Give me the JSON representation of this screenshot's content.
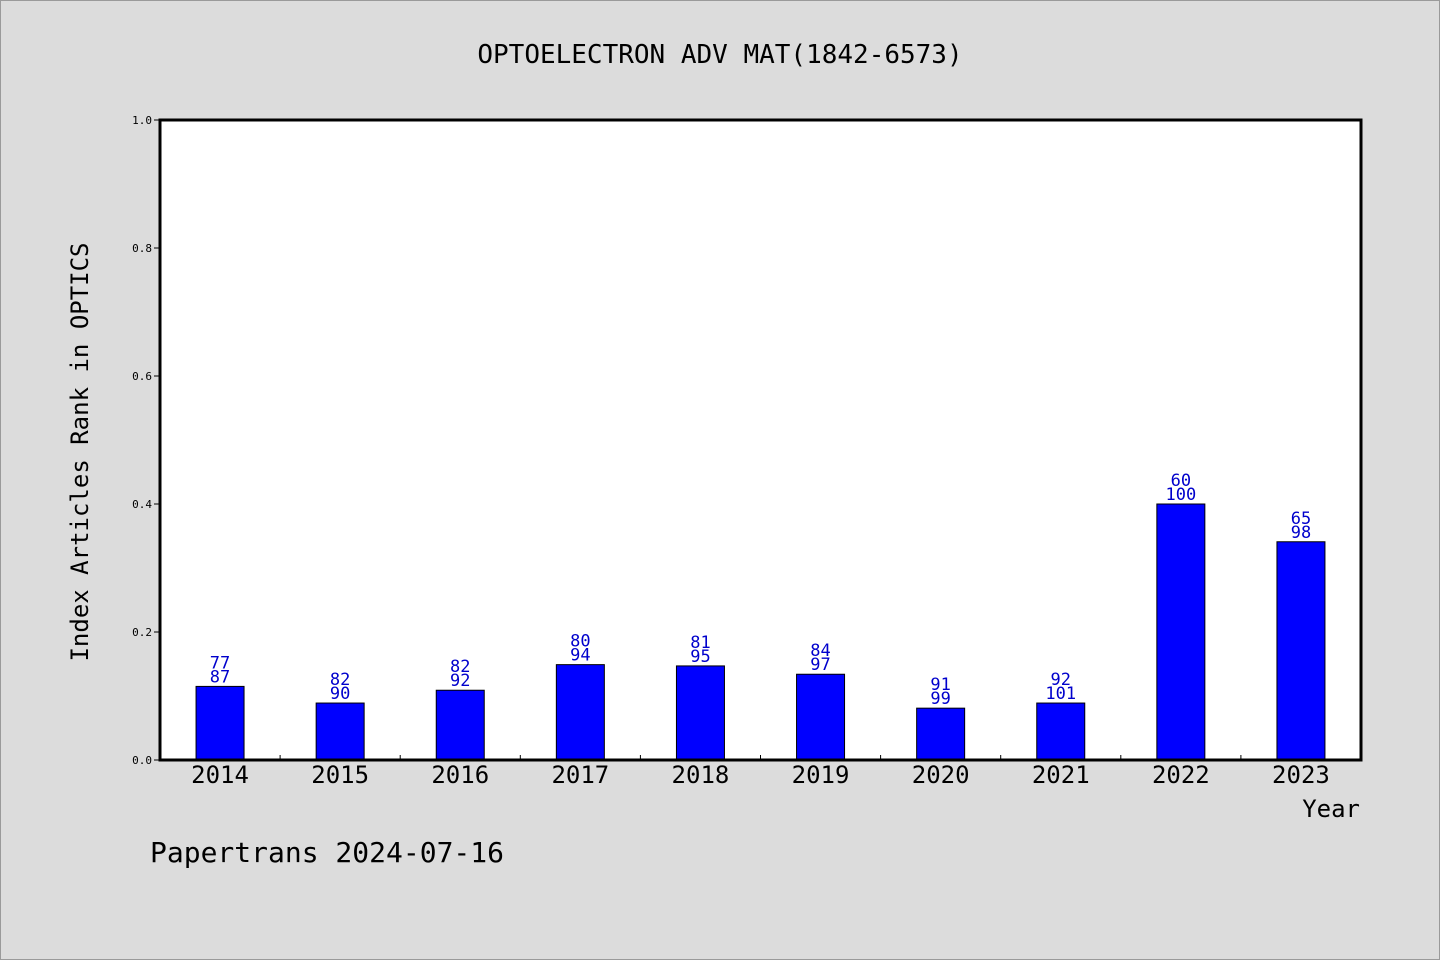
{
  "colors": {
    "background": "#dcdcdc",
    "plot_background": "#ffffff",
    "bar_fill": "#0000ff",
    "bar_stroke": "#000000",
    "label_color": "#0000cc"
  },
  "footer": {
    "text": "Papertrans 2024-07-16"
  },
  "chart_data": {
    "type": "bar",
    "title": "OPTOELECTRON ADV MAT(1842-6573)",
    "xlabel": "Year",
    "ylabel": "Index Articles Rank in OPTICS",
    "ylim": [
      0,
      1.0
    ],
    "yticks": [
      "0.0",
      "0.2",
      "0.4",
      "0.6",
      "0.8",
      "1.0"
    ],
    "grid": false,
    "categories": [
      "2014",
      "2015",
      "2016",
      "2017",
      "2018",
      "2019",
      "2020",
      "2021",
      "2022",
      "2023"
    ],
    "values": [
      0.115,
      0.089,
      0.109,
      0.149,
      0.147,
      0.134,
      0.081,
      0.089,
      0.4,
      0.341
    ],
    "labels_top": [
      "77",
      "82",
      "82",
      "80",
      "81",
      "84",
      "91",
      "92",
      "60",
      "65"
    ],
    "labels_bottom": [
      "87",
      "90",
      "92",
      "94",
      "95",
      "97",
      "99",
      "101",
      "100",
      "98"
    ]
  }
}
